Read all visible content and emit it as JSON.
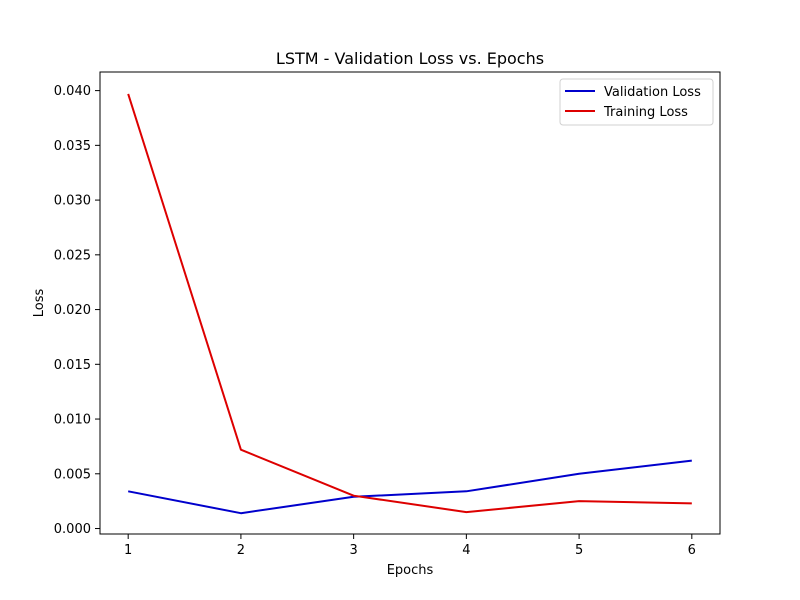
{
  "chart_data": {
    "type": "line",
    "title": "LSTM - Validation Loss vs. Epochs",
    "xlabel": "Epochs",
    "ylabel": "Loss",
    "x": [
      1,
      2,
      3,
      4,
      5,
      6
    ],
    "xticks": [
      "1",
      "2",
      "3",
      "4",
      "5",
      "6"
    ],
    "xlim": [
      0.75,
      6.25
    ],
    "yticks": [
      "0.000",
      "0.005",
      "0.010",
      "0.015",
      "0.020",
      "0.025",
      "0.030",
      "0.035",
      "0.040"
    ],
    "ylim": [
      -0.0005,
      0.0417
    ],
    "grid": false,
    "legend_position": "top-right",
    "series": [
      {
        "name": "Validation Loss",
        "color": "#0000cc",
        "values": [
          0.0034,
          0.0014,
          0.0029,
          0.0034,
          0.005,
          0.0062
        ]
      },
      {
        "name": "Training Loss",
        "color": "#dd0000",
        "values": [
          0.0397,
          0.0072,
          0.003,
          0.0015,
          0.0025,
          0.0023
        ]
      }
    ]
  }
}
